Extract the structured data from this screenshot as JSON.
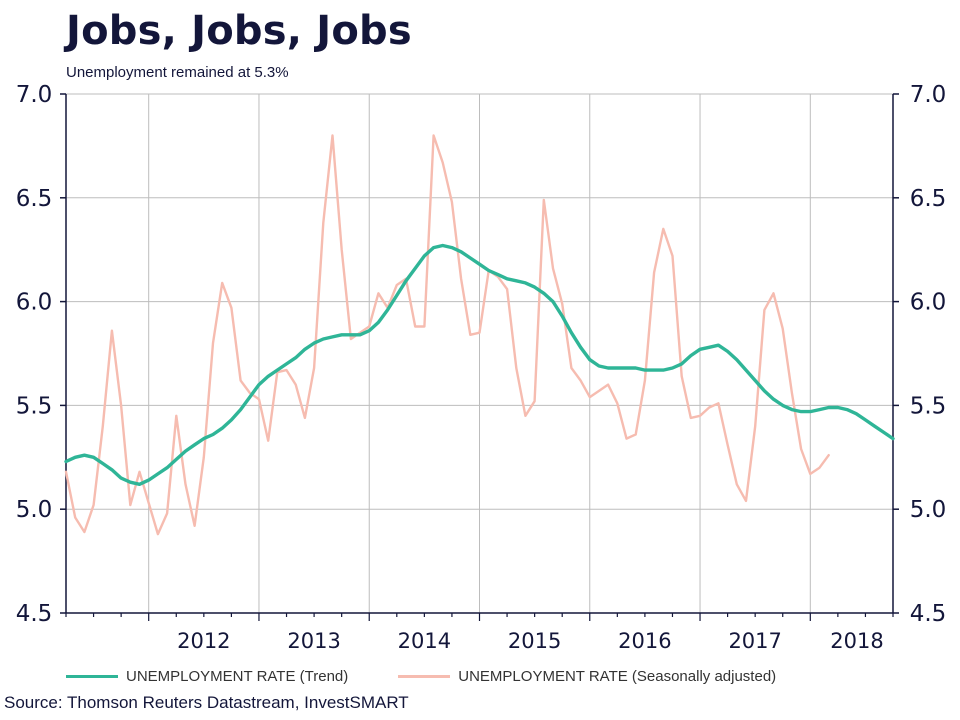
{
  "title": "Jobs, Jobs, Jobs",
  "subtitle": "Unemployment remained at 5.3%",
  "source": "Source: Thomson Reuters Datastream, InvestSMART",
  "chart_data": {
    "type": "line",
    "ylim": [
      4.5,
      7.0
    ],
    "yticks": [
      "4.5",
      "5.0",
      "5.5",
      "6.0",
      "6.5",
      "7.0"
    ],
    "ytick_values": [
      4.5,
      5.0,
      5.5,
      6.0,
      6.5,
      7.0
    ],
    "xlim": [
      2011.25,
      2018.75
    ],
    "xticks": [
      "2012",
      "2013",
      "2014",
      "2015",
      "2016",
      "2017",
      "2018"
    ],
    "xtick_positions": [
      2012,
      2013,
      2014,
      2015,
      2016,
      2017,
      2018
    ],
    "x_start": 2011.25,
    "x_step_months": 1,
    "grid": true,
    "legend_position": "bottom",
    "colors": {
      "trend": "#2fb597",
      "seasonal": "#f6bcb0",
      "axis": "#13163a",
      "grid": "#bdbdbd"
    },
    "series": [
      {
        "name": "UNEMPLOYMENT RATE (Trend)",
        "values": [
          5.23,
          5.25,
          5.26,
          5.25,
          5.22,
          5.19,
          5.15,
          5.13,
          5.12,
          5.14,
          5.17,
          5.2,
          5.24,
          5.28,
          5.31,
          5.34,
          5.36,
          5.39,
          5.43,
          5.48,
          5.54,
          5.6,
          5.64,
          5.67,
          5.7,
          5.73,
          5.77,
          5.8,
          5.82,
          5.83,
          5.84,
          5.84,
          5.84,
          5.86,
          5.9,
          5.96,
          6.03,
          6.1,
          6.16,
          6.22,
          6.26,
          6.27,
          6.26,
          6.24,
          6.21,
          6.18,
          6.15,
          6.13,
          6.11,
          6.1,
          6.09,
          6.07,
          6.04,
          6.0,
          5.93,
          5.85,
          5.78,
          5.72,
          5.69,
          5.68,
          5.68,
          5.68,
          5.68,
          5.67,
          5.67,
          5.67,
          5.68,
          5.7,
          5.74,
          5.77,
          5.78,
          5.79,
          5.76,
          5.72,
          5.67,
          5.62,
          5.57,
          5.53,
          5.5,
          5.48,
          5.47,
          5.47,
          5.48,
          5.49,
          5.49,
          5.48,
          5.46,
          5.43,
          5.4,
          5.37,
          5.34
        ]
      },
      {
        "name": "UNEMPLOYMENT RATE (Seasonally adjusted)",
        "values": [
          5.18,
          4.96,
          4.89,
          5.02,
          5.4,
          5.86,
          5.5,
          5.02,
          5.18,
          5.03,
          4.88,
          4.98,
          5.45,
          5.12,
          4.92,
          5.25,
          5.8,
          6.09,
          5.97,
          5.62,
          5.56,
          5.53,
          5.33,
          5.66,
          5.67,
          5.6,
          5.44,
          5.68,
          6.38,
          6.8,
          6.25,
          5.82,
          5.85,
          5.88,
          6.04,
          5.97,
          6.08,
          6.11,
          5.88,
          5.88,
          6.8,
          6.67,
          6.48,
          6.11,
          5.84,
          5.85,
          6.15,
          6.12,
          6.06,
          5.68,
          5.45,
          5.52,
          6.49,
          6.16,
          5.99,
          5.68,
          5.62,
          5.54,
          5.57,
          5.6,
          5.51,
          5.34,
          5.36,
          5.62,
          6.14,
          6.35,
          6.22,
          5.64,
          5.44,
          5.45,
          5.49,
          5.51,
          5.31,
          5.12,
          5.04,
          5.4,
          5.96,
          6.04,
          5.87,
          5.56,
          5.29,
          5.17,
          5.2,
          5.26
        ]
      }
    ]
  }
}
